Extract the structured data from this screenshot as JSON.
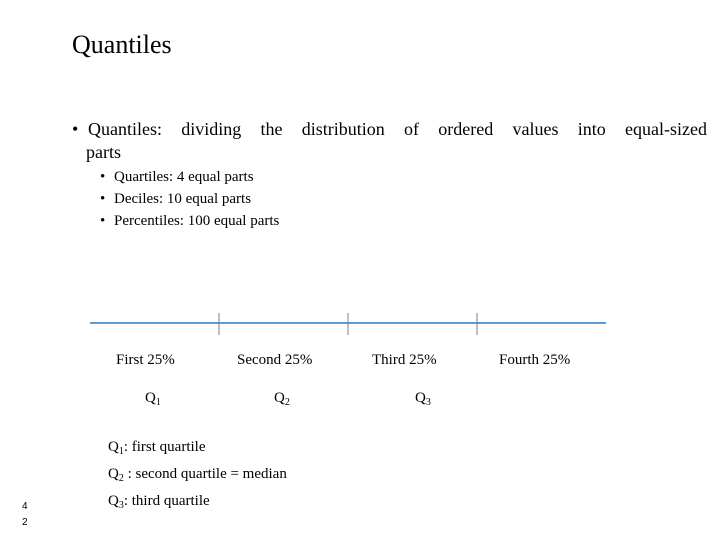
{
  "slide": {
    "title": "Quantiles",
    "main_bullet": {
      "line1": "Quantiles: dividing the distribution of ordered values into equal-sized",
      "line2": "parts"
    },
    "sub_bullets": [
      "Quartiles: 4 equal parts",
      "Deciles: 10 equal parts",
      "Percentiles: 100 equal parts"
    ],
    "segments": [
      "First 25%",
      "Second 25%",
      "Third 25%",
      "Fourth 25%"
    ],
    "quartile_marks": [
      {
        "base": "Q",
        "sub": "1"
      },
      {
        "base": "Q",
        "sub": "2"
      },
      {
        "base": "Q",
        "sub": "3"
      }
    ],
    "legend": [
      {
        "base": "Q",
        "sub": "1",
        "text": ": first quartile"
      },
      {
        "base": "Q",
        "sub": "2",
        "text": " : second quartile = median"
      },
      {
        "base": "Q",
        "sub": "3",
        "text": ": third quartile"
      }
    ],
    "page_number": {
      "line1": "4",
      "line2": "2"
    },
    "colors": {
      "axis_line": "#5b9bd5",
      "tick": "#7f7f7f"
    }
  }
}
